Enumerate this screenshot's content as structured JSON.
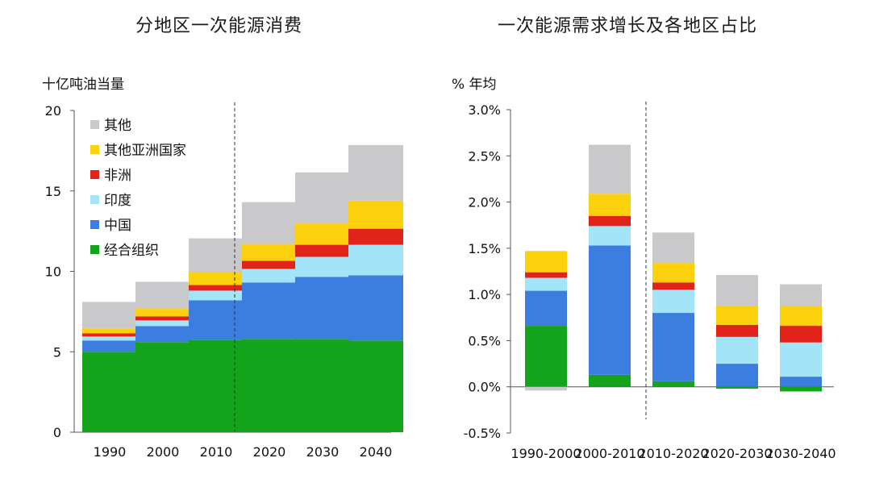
{
  "charts": [
    {
      "id": "left",
      "title": "分地区一次能源消费",
      "ylabel": "十亿吨油当量"
    },
    {
      "id": "right",
      "title": "一次能源需求增长及各地区占比",
      "ylabel": "% 年均"
    }
  ],
  "colors": {
    "其他": "#c9c8ca",
    "其他亚洲国家": "#fbd10d",
    "非洲": "#e2231a",
    "印度": "#a3e4f9",
    "中国": "#3c7de0",
    "经合组织": "#13a41b"
  },
  "chart_data": [
    {
      "type": "bar",
      "stacked": true,
      "title": "分地区一次能源消费",
      "xlabel": "",
      "ylabel": "十亿吨油当量",
      "ylim": [
        0,
        20
      ],
      "yticks": [
        "0",
        "5",
        "10",
        "15",
        "20"
      ],
      "categories": [
        "1990",
        "2000",
        "2010",
        "2020",
        "2030",
        "2040"
      ],
      "divider_between": [
        "2010",
        "2020"
      ],
      "legend_position": "top-left",
      "legend": [
        "其他",
        "其他亚洲国家",
        "非洲",
        "印度",
        "中国",
        "经合组织"
      ],
      "series": [
        {
          "name": "经合组织",
          "values": [
            5.0,
            5.6,
            5.75,
            5.8,
            5.8,
            5.7
          ]
        },
        {
          "name": "中国",
          "values": [
            0.7,
            1.0,
            2.45,
            3.5,
            3.85,
            4.05
          ]
        },
        {
          "name": "印度",
          "values": [
            0.25,
            0.35,
            0.6,
            0.85,
            1.25,
            1.9
          ]
        },
        {
          "name": "非洲",
          "values": [
            0.2,
            0.25,
            0.35,
            0.5,
            0.75,
            1.0
          ]
        },
        {
          "name": "其他亚洲国家",
          "values": [
            0.3,
            0.5,
            0.8,
            1.05,
            1.35,
            1.75
          ]
        },
        {
          "name": "其他",
          "values": [
            1.65,
            1.65,
            2.1,
            2.6,
            3.15,
            3.45
          ]
        }
      ]
    },
    {
      "type": "bar",
      "stacked": true,
      "title": "一次能源需求增长及各地区占比",
      "xlabel": "",
      "ylabel": "% 年均",
      "ylim": [
        -0.5,
        3.0
      ],
      "yticks": [
        "-0.5%",
        "0.0%",
        "0.5%",
        "1.0%",
        "1.5%",
        "2.0%",
        "2.5%",
        "3.0%"
      ],
      "categories": [
        "1990-2000",
        "2000-2010",
        "2010-2020",
        "2020-2030",
        "2030-2040"
      ],
      "divider_between": [
        "2000-2010",
        "2010-2020"
      ],
      "series": [
        {
          "name": "经合组织",
          "values": [
            0.66,
            0.13,
            0.06,
            -0.02,
            -0.05
          ]
        },
        {
          "name": "中国",
          "values": [
            0.38,
            1.4,
            0.74,
            0.25,
            0.11
          ]
        },
        {
          "name": "印度",
          "values": [
            0.14,
            0.21,
            0.25,
            0.29,
            0.37
          ]
        },
        {
          "name": "非洲",
          "values": [
            0.06,
            0.11,
            0.08,
            0.13,
            0.18
          ]
        },
        {
          "name": "其他亚洲国家",
          "values": [
            0.23,
            0.24,
            0.21,
            0.21,
            0.21
          ]
        },
        {
          "name": "其他",
          "values": [
            -0.04,
            0.53,
            0.33,
            0.33,
            0.24
          ]
        }
      ]
    }
  ]
}
